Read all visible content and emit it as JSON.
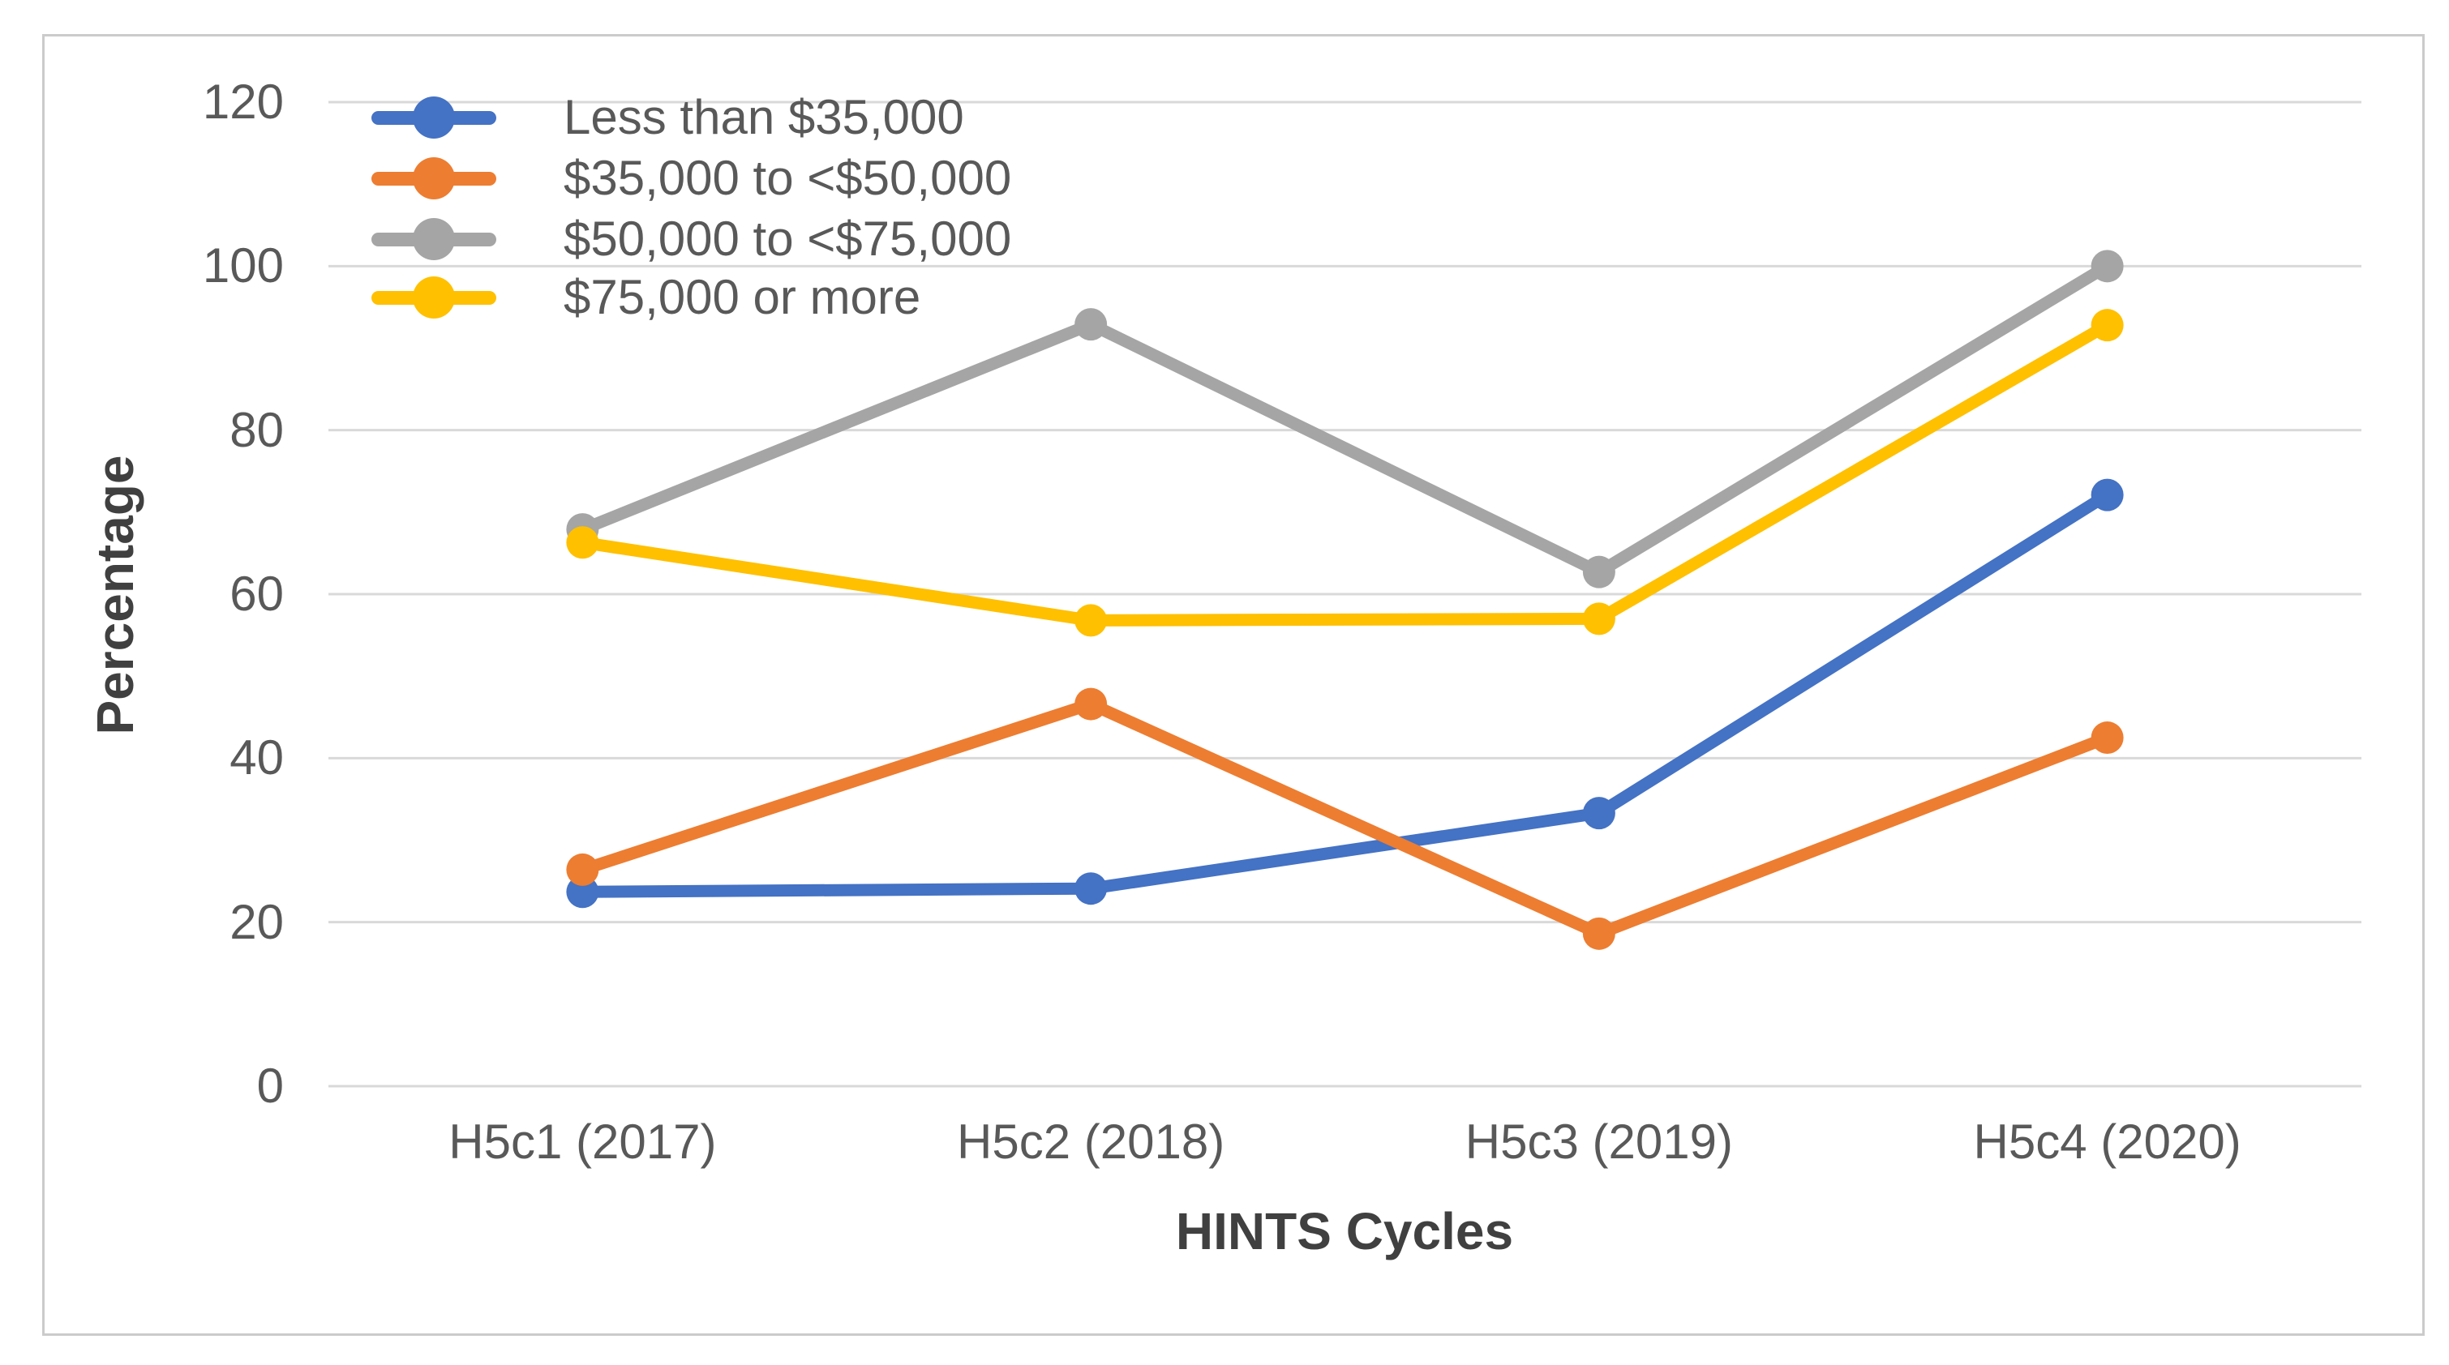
{
  "chart_data": {
    "type": "line",
    "title": "",
    "xlabel": "HINTS Cycles",
    "ylabel": "Percentage",
    "categories": [
      "H5c1 (2017)",
      "H5c2 (2018)",
      "H5c3 (2019)",
      "H5c4 (2020)"
    ],
    "series": [
      {
        "name": "Less than $35,000",
        "color": "#4472C4",
        "values": [
          23.7,
          24.1,
          33.3,
          72.1
        ]
      },
      {
        "name": "$35,000 to <$50,000",
        "color": "#ED7D31",
        "values": [
          26.4,
          46.6,
          18.6,
          42.5
        ]
      },
      {
        "name": "$50,000 to <$75,000",
        "color": "#A5A5A5",
        "values": [
          67.9,
          92.9,
          62.7,
          100
        ]
      },
      {
        "name": "$75,000 or more",
        "color": "#FFC000",
        "values": [
          66.3,
          56.8,
          57,
          92.8
        ]
      }
    ],
    "ylim": [
      0,
      120
    ],
    "ytick_values": [
      0,
      20,
      40,
      60,
      80,
      100,
      120
    ],
    "ytick_labels": [
      "0",
      "20",
      "40",
      "60",
      "80",
      "100",
      "120"
    ],
    "grid": "horizontal",
    "legend_position": "inside-top-left",
    "marker": "circle",
    "colors": {
      "gridline": "#D9D9D9",
      "tick_text": "#595959",
      "axis_title_text": "#404040",
      "figure_border": "#CBCBCB",
      "background": "#FFFFFF"
    }
  }
}
